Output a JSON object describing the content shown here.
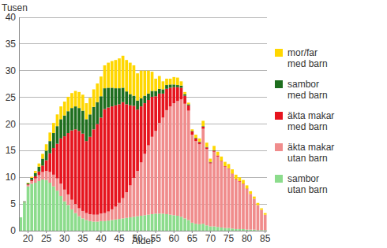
{
  "chart_data": {
    "type": "bar",
    "stacked": true,
    "grid": true,
    "legend": "right",
    "y_label": "Tusen",
    "x_label": "Ålder",
    "x": [
      18,
      19,
      20,
      21,
      22,
      23,
      24,
      25,
      26,
      27,
      28,
      29,
      30,
      31,
      32,
      33,
      34,
      35,
      36,
      37,
      38,
      39,
      40,
      41,
      42,
      43,
      44,
      45,
      46,
      47,
      48,
      49,
      50,
      51,
      52,
      53,
      54,
      55,
      56,
      57,
      58,
      59,
      60,
      61,
      62,
      63,
      64,
      65,
      66,
      67,
      68,
      69,
      70,
      71,
      72,
      73,
      74,
      75,
      76,
      77,
      78,
      79,
      80,
      81,
      82,
      83,
      84,
      85
    ],
    "xlim": [
      17.5,
      85.5
    ],
    "xticks": [
      20,
      25,
      30,
      35,
      40,
      45,
      50,
      55,
      60,
      65,
      70,
      75,
      80,
      85
    ],
    "ylim": [
      0,
      40
    ],
    "yticks": [
      0,
      5,
      10,
      15,
      20,
      25,
      30,
      35,
      40
    ],
    "series": [
      {
        "name": "sambor utan barn",
        "color": "#8cdc8c",
        "values": [
          2.5,
          5.3,
          8.3,
          8.8,
          9,
          9.3,
          9.6,
          9.5,
          9,
          8.3,
          7.5,
          6.5,
          5.5,
          4.8,
          4,
          3.3,
          2.7,
          2.3,
          2,
          1.8,
          1.7,
          1.7,
          1.8,
          1.8,
          1.9,
          2,
          2.1,
          2.2,
          2.3,
          2.4,
          2.5,
          2.6,
          2.7,
          2.8,
          2.9,
          3,
          3.1,
          3.2,
          3.2,
          3.2,
          3.1,
          3,
          2.9,
          2.8,
          2.6,
          2.3,
          2,
          1.5,
          1.3,
          1.2,
          1.3,
          1,
          0.8,
          0.8,
          0.7,
          0.6,
          0.5,
          0.5,
          0.4,
          0.3,
          0.3,
          0.3,
          0.2,
          0.2,
          0.2,
          0.1,
          0.1,
          0.1
        ]
      },
      {
        "name": "äkta makar utan barn",
        "color": "#f08c8c",
        "values": [
          0,
          0.1,
          0.3,
          0.5,
          0.8,
          1.1,
          1.4,
          1.7,
          2,
          2.2,
          2.3,
          2.3,
          2.2,
          2,
          1.8,
          1.7,
          1.5,
          1.4,
          1.3,
          1.3,
          1.3,
          1.3,
          1.4,
          1.5,
          1.7,
          2,
          2.4,
          3,
          3.8,
          4.8,
          6,
          7.3,
          8.5,
          10,
          11.5,
          13,
          14.5,
          15.5,
          17,
          18,
          19.5,
          20.3,
          21,
          21.5,
          22,
          21.5,
          20.5,
          16.5,
          15.5,
          15,
          17.8,
          14.3,
          11.8,
          14,
          13.2,
          12.4,
          11.5,
          11.1,
          10.2,
          9.3,
          8.9,
          8.4,
          7.6,
          6.7,
          5.8,
          4.7,
          3.8,
          2.9
        ]
      },
      {
        "name": "äkta makar med barn",
        "color": "#e6141e",
        "values": [
          0,
          0,
          0.1,
          0.2,
          0.4,
          0.7,
          1.2,
          2,
          3.5,
          5,
          6.5,
          8.5,
          10,
          11.5,
          13,
          14,
          14.5,
          14.5,
          13.5,
          14.5,
          16,
          17,
          18,
          19.5,
          19.5,
          19.3,
          19,
          18.5,
          18,
          16.5,
          15,
          13.5,
          11.5,
          10.5,
          9.5,
          8.5,
          7.5,
          6.5,
          5.5,
          4.5,
          4,
          3.5,
          3,
          2.6,
          2.2,
          1.5,
          1,
          0.6,
          0.5,
          0.4,
          0.4,
          0.3,
          0.2,
          0.2,
          0.2,
          0.1,
          0.1,
          0.1,
          0.1,
          0.1,
          0.1,
          0.1,
          0.1,
          0,
          0,
          0,
          0,
          0
        ]
      },
      {
        "name": "sambor med barn",
        "color": "#1e6e1e",
        "values": [
          0,
          0.1,
          0.2,
          0.4,
          0.6,
          0.9,
          1.3,
          1.8,
          2.3,
          2.8,
          3.3,
          3.6,
          3.9,
          4.1,
          4.2,
          4.3,
          4.3,
          4.3,
          4.1,
          4.2,
          4.2,
          4.1,
          4,
          3.9,
          3.7,
          3.5,
          3.2,
          3,
          2.7,
          2.4,
          2.1,
          1.9,
          1.7,
          1.5,
          1.4,
          1.2,
          1.1,
          1,
          0.9,
          0.8,
          0.7,
          0.6,
          0.5,
          0.4,
          0.4,
          0.3,
          0.2,
          0.1,
          0.1,
          0.1,
          0.1,
          0.1,
          0.1,
          0.1,
          0,
          0,
          0,
          0,
          0,
          0,
          0,
          0,
          0,
          0,
          0,
          0,
          0,
          0
        ]
      },
      {
        "name": "mor/far med barn",
        "color": "#ffd700",
        "values": [
          0,
          0,
          0.1,
          0.2,
          0.4,
          0.6,
          0.9,
          1.2,
          1.6,
          1.9,
          2.2,
          2.4,
          2.6,
          2.7,
          2.8,
          2.9,
          3,
          3,
          3,
          3.1,
          3.3,
          3.5,
          3.7,
          4.3,
          4.7,
          5,
          5.3,
          5.6,
          6,
          5.9,
          5.9,
          5.7,
          5.1,
          5.2,
          4.7,
          4.3,
          3.6,
          2.3,
          2.4,
          1.5,
          1.2,
          1.1,
          1.4,
          1.4,
          0.8,
          0.4,
          0.3,
          0.3,
          0.6,
          0.6,
          1,
          0.8,
          0.6,
          0.8,
          0.7,
          0.8,
          0.8,
          0.8,
          0.8,
          0.8,
          0.7,
          0.7,
          0.6,
          0.5,
          0.4,
          0.4,
          0.3,
          0.3
        ]
      }
    ]
  }
}
